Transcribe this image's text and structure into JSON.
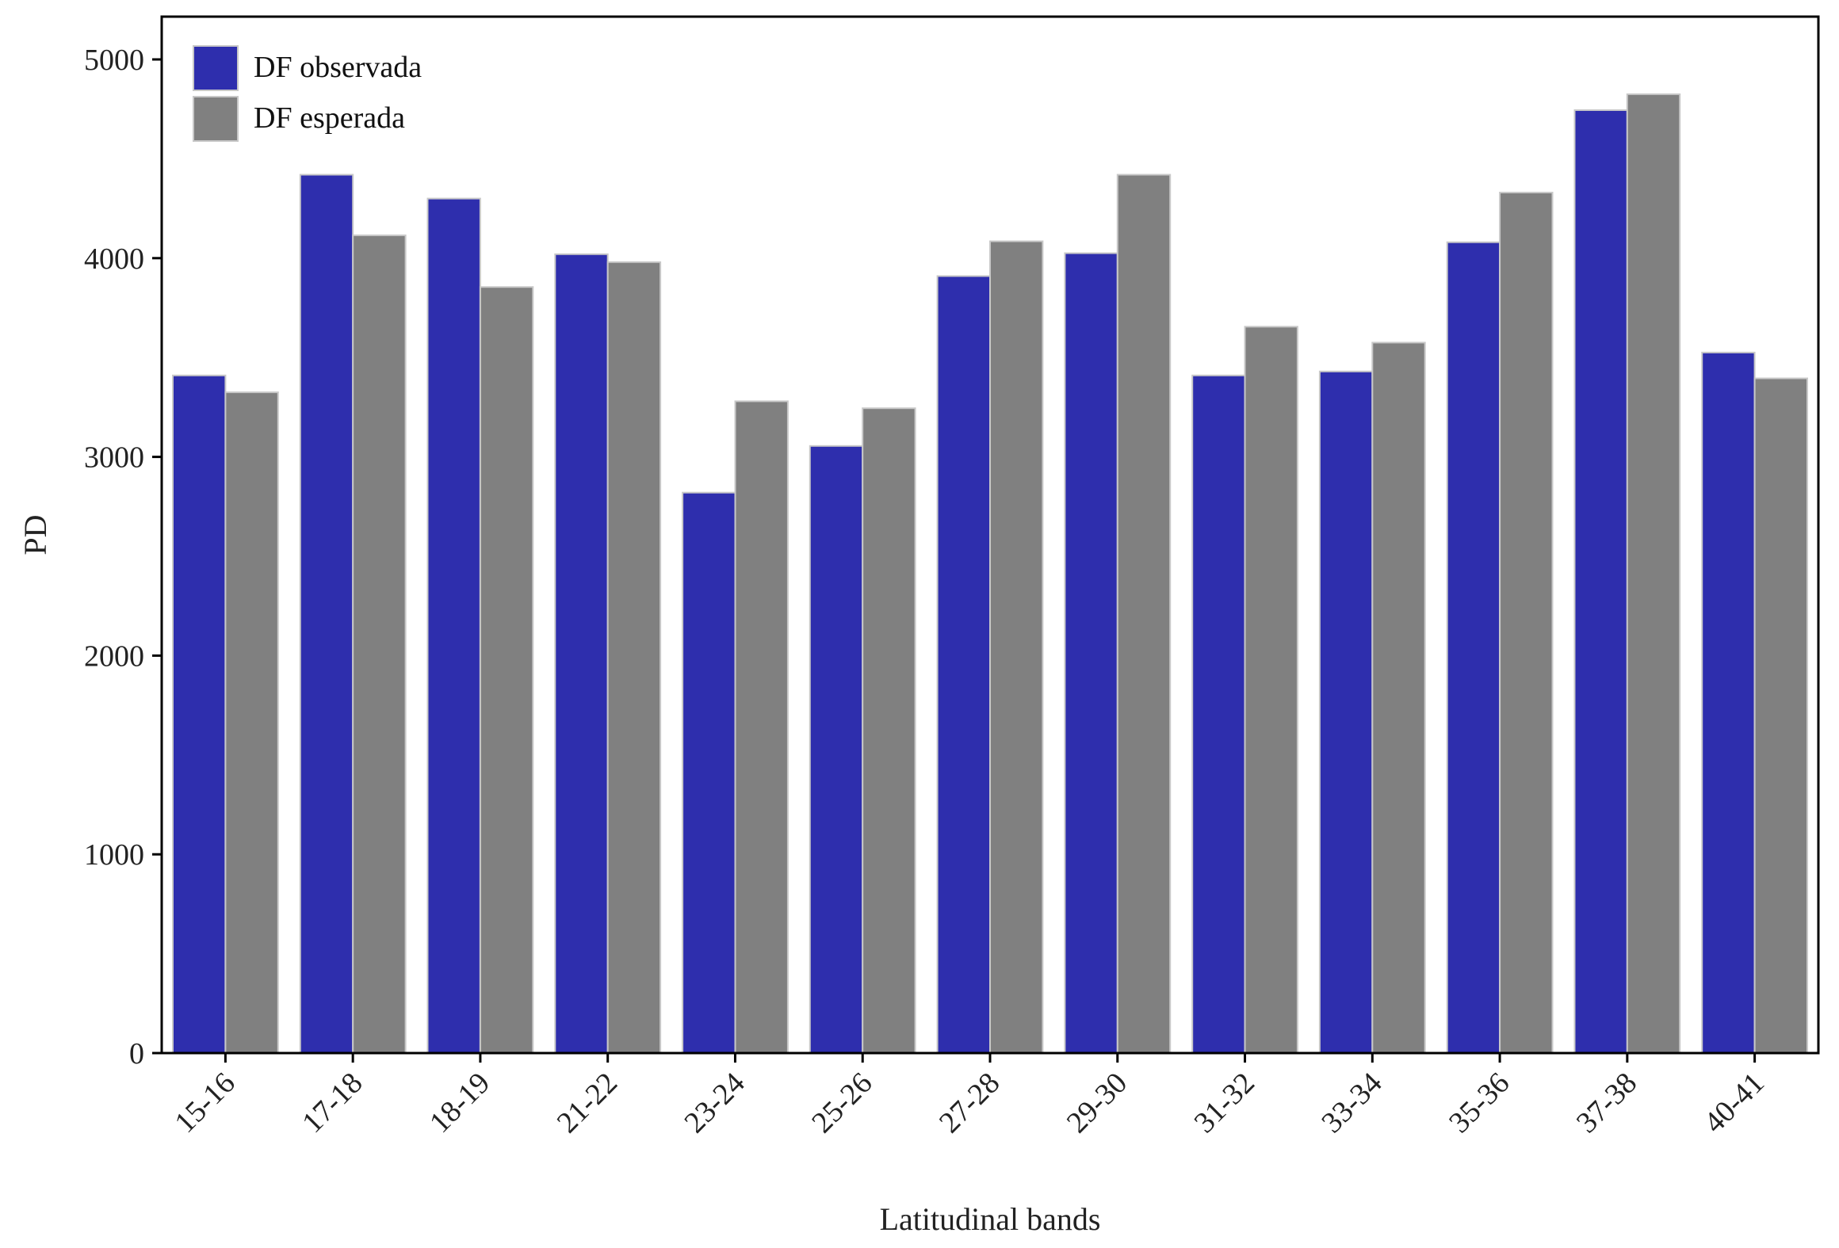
{
  "chart_data": {
    "type": "bar",
    "title": "",
    "xlabel": "Latitudinal bands",
    "ylabel": "PD",
    "ylim": [
      0,
      5000
    ],
    "yticks": [
      "0",
      "1000",
      "2000",
      "3000",
      "4000",
      "5000"
    ],
    "ytick_values": [
      0,
      1000,
      2000,
      3000,
      4000,
      5000
    ],
    "categories": [
      "15-16",
      "17-18",
      "18-19",
      "21-22",
      "23-24",
      "25-26",
      "27-28",
      "29-30",
      "31-32",
      "33-34",
      "35-36",
      "37-38",
      "40-41"
    ],
    "series": [
      {
        "name": "DF observada",
        "color": "#2e2ead",
        "values": [
          3410,
          4420,
          4300,
          4020,
          2820,
          3055,
          3910,
          4025,
          3410,
          3430,
          4080,
          4745,
          3525
        ]
      },
      {
        "name": "DF esperada",
        "color": "#808080",
        "values": [
          3325,
          4115,
          3855,
          3980,
          3280,
          3245,
          4085,
          4420,
          3655,
          3575,
          4330,
          4825,
          3395
        ]
      }
    ],
    "legend_position": "top-left",
    "grid": false
  }
}
